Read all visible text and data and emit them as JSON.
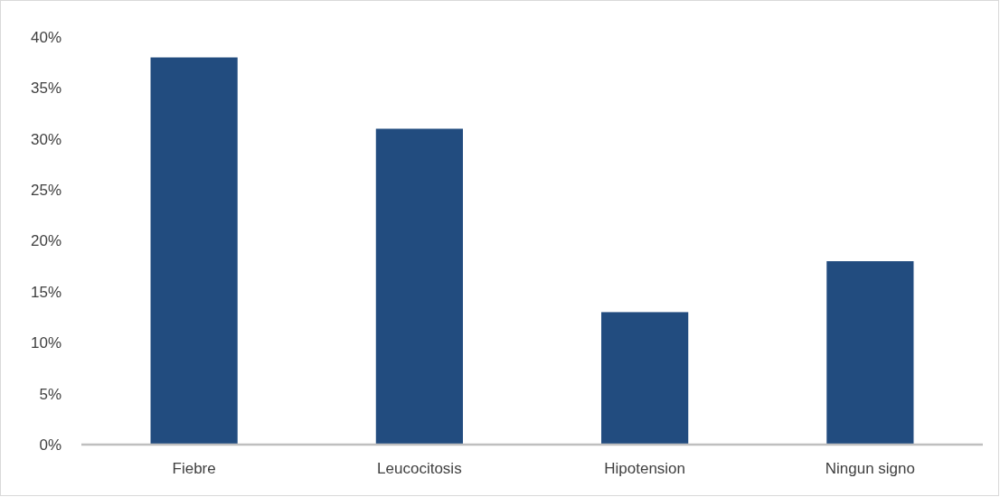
{
  "chart_data": {
    "type": "bar",
    "categories": [
      "Fiebre",
      "Leucocitosis",
      "Hipotension",
      "Ningun signo"
    ],
    "values": [
      38,
      31,
      13,
      18
    ],
    "color": "#224c7f",
    "ylim": [
      0,
      40
    ],
    "yticks": [
      {
        "value": 0,
        "label": "0%"
      },
      {
        "value": 5,
        "label": "5%"
      },
      {
        "value": 10,
        "label": "10%"
      },
      {
        "value": 15,
        "label": "15%"
      },
      {
        "value": 20,
        "label": "20%"
      },
      {
        "value": 25,
        "label": "25%"
      },
      {
        "value": 30,
        "label": "30%"
      },
      {
        "value": 35,
        "label": "35%"
      },
      {
        "value": 40,
        "label": "40%"
      }
    ],
    "grid": false
  }
}
